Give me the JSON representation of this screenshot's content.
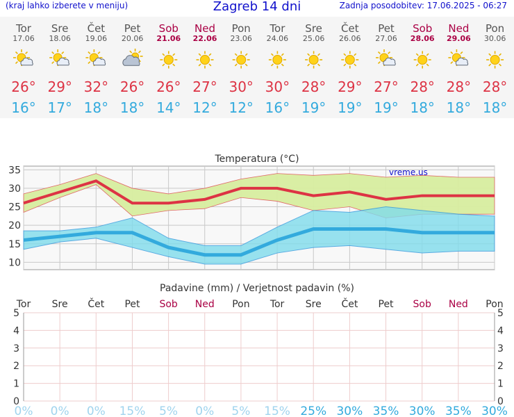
{
  "header": {
    "menu_hint": "(kraj lahko izberete v meniju)",
    "title": "Zagreb 14 dni",
    "updated": "Zadnja posodobitev: 17.06.2025 - 06:27"
  },
  "days": [
    {
      "name": "Tor",
      "date": "17.06",
      "weekend": false,
      "icon": "sun-cloud-icon",
      "max": "26°",
      "min": "16°"
    },
    {
      "name": "Sre",
      "date": "18.06",
      "weekend": false,
      "icon": "sun-cloud-icon",
      "max": "29°",
      "min": "17°"
    },
    {
      "name": "Čet",
      "date": "19.06",
      "weekend": false,
      "icon": "sun-cloud-icon",
      "max": "32°",
      "min": "18°"
    },
    {
      "name": "Pet",
      "date": "20.06",
      "weekend": false,
      "icon": "cloud-sun-icon",
      "max": "26°",
      "min": "18°"
    },
    {
      "name": "Sob",
      "date": "21.06",
      "weekend": true,
      "icon": "sun-icon",
      "max": "26°",
      "min": "14°"
    },
    {
      "name": "Ned",
      "date": "22.06",
      "weekend": true,
      "icon": "sun-icon",
      "max": "27°",
      "min": "12°"
    },
    {
      "name": "Pon",
      "date": "23.06",
      "weekend": false,
      "icon": "sun-icon",
      "max": "30°",
      "min": "12°"
    },
    {
      "name": "Tor",
      "date": "24.06",
      "weekend": false,
      "icon": "sun-icon",
      "max": "30°",
      "min": "16°"
    },
    {
      "name": "Sre",
      "date": "25.06",
      "weekend": false,
      "icon": "sun-icon",
      "max": "28°",
      "min": "19°"
    },
    {
      "name": "Čet",
      "date": "26.06",
      "weekend": false,
      "icon": "sun-icon",
      "max": "29°",
      "min": "19°"
    },
    {
      "name": "Pet",
      "date": "27.06",
      "weekend": false,
      "icon": "sun-cloud-icon",
      "max": "27°",
      "min": "19°"
    },
    {
      "name": "Sob",
      "date": "28.06",
      "weekend": true,
      "icon": "sun-icon",
      "max": "28°",
      "min": "18°"
    },
    {
      "name": "Ned",
      "date": "29.06",
      "weekend": true,
      "icon": "sun-cloud-icon",
      "max": "28°",
      "min": "18°"
    },
    {
      "name": "Pon",
      "date": "30.06",
      "weekend": false,
      "icon": "sun-icon",
      "max": "28°",
      "min": "18°"
    }
  ],
  "colors": {
    "title": "#1111cc",
    "max_temp": "#dd3344",
    "min_temp": "#33aadd",
    "weekend": "#aa0044",
    "max_band": "#d8eea0",
    "min_band": "#80dcec",
    "overlap_band": "#8ccc88",
    "precip_grid": "#eecccc",
    "precip_low": "#a0d4ee",
    "precip_high": "#33aadd"
  },
  "chart_data": [
    {
      "type": "area",
      "title": "Temperatura (°C)",
      "watermark": "vreme.us",
      "categories": [
        "17.06",
        "18.06",
        "19.06",
        "20.06",
        "21.06",
        "22.06",
        "23.06",
        "24.06",
        "25.06",
        "26.06",
        "27.06",
        "28.06",
        "29.06",
        "30.06"
      ],
      "yticks": [
        "10",
        "15",
        "20",
        "25",
        "30",
        "35"
      ],
      "ylim": [
        8,
        36
      ],
      "grid": true,
      "series": [
        {
          "name": "max",
          "values": [
            26,
            29,
            32,
            26,
            26,
            27,
            30,
            30,
            28,
            29,
            27,
            28,
            28,
            28
          ],
          "band_low": [
            23.5,
            27.5,
            31,
            22.5,
            24,
            24.5,
            27.5,
            26.5,
            24,
            25,
            22,
            23,
            23,
            23
          ],
          "band_high": [
            28.5,
            31,
            34,
            30,
            28.5,
            30,
            32.5,
            34,
            33.5,
            34,
            33,
            33.5,
            33,
            33
          ]
        },
        {
          "name": "min",
          "values": [
            16,
            17,
            18,
            18,
            14,
            12,
            12,
            16,
            19,
            19,
            19,
            18,
            18,
            18
          ],
          "band_low": [
            13.5,
            15.5,
            16.5,
            14,
            11.5,
            9.5,
            9.5,
            12.5,
            14,
            14.5,
            13.5,
            12.5,
            13,
            13
          ],
          "band_high": [
            18.5,
            18.5,
            19.5,
            22,
            16.5,
            14.5,
            14.5,
            19.5,
            24,
            23.5,
            25,
            24,
            23,
            22.5
          ]
        }
      ]
    },
    {
      "type": "bar",
      "title": "Padavine (mm) / Verjetnost padavin (%)",
      "categories": [
        "Tor",
        "Sre",
        "Čet",
        "Pet",
        "Sob",
        "Ned",
        "Pon",
        "Tor",
        "Sre",
        "Čet",
        "Pet",
        "Sob",
        "Ned",
        "Pon"
      ],
      "yticks": [
        "0",
        "1",
        "2",
        "3",
        "4",
        "5"
      ],
      "ylim": [
        0,
        5
      ],
      "values": [
        0,
        0,
        0,
        0,
        0,
        0,
        0,
        0,
        0,
        0,
        0,
        0,
        0,
        0
      ],
      "probability": [
        "0%",
        "0%",
        "0%",
        "15%",
        "5%",
        "0%",
        "5%",
        "15%",
        "25%",
        "30%",
        "35%",
        "30%",
        "35%",
        "30%"
      ],
      "probability_values": [
        0,
        0,
        0,
        15,
        5,
        0,
        5,
        15,
        25,
        30,
        35,
        30,
        35,
        30
      ]
    }
  ]
}
